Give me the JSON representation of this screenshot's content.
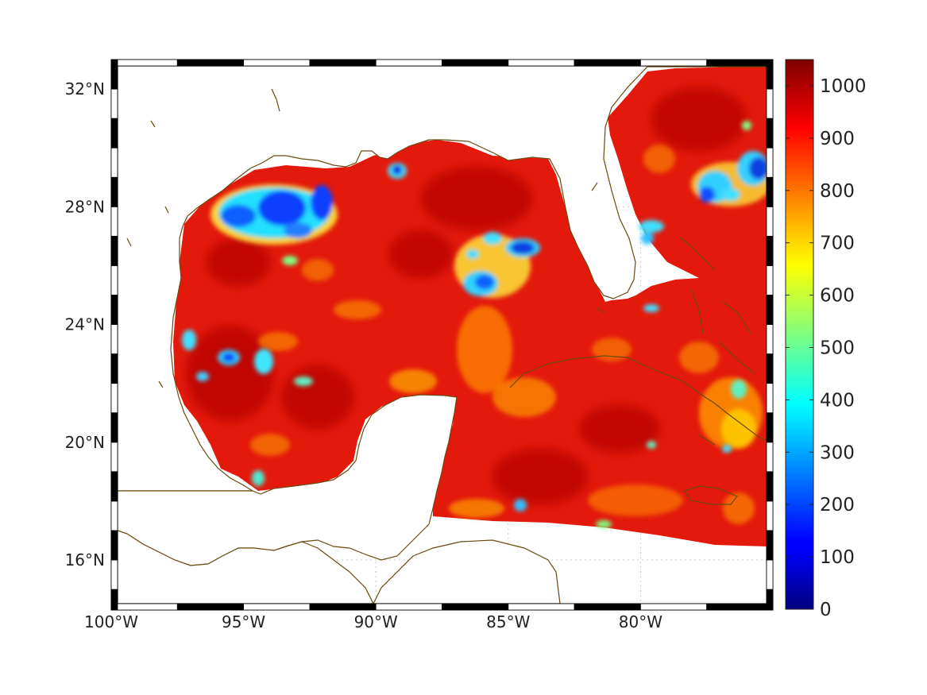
{
  "map": {
    "lat_labels": [
      "32°N",
      "28°N",
      "24°N",
      "20°N",
      "16°N"
    ],
    "lat_values": [
      32,
      28,
      24,
      20,
      16
    ],
    "lon_labels": [
      "100°W",
      "95°W",
      "90°W",
      "85°W",
      "80°W"
    ],
    "lon_values": [
      -100,
      -95,
      -90,
      -85,
      -80
    ],
    "lon_range": [
      -100,
      -75
    ],
    "lat_range": [
      14.3,
      33
    ],
    "grid": true,
    "frame": "black-and-white checkered",
    "coastline_color": "#6b4a10",
    "land_color": "#ffffff"
  },
  "colorbar": {
    "colormap": "jet",
    "range": [
      0,
      1050
    ],
    "tick_labels": [
      "0",
      "100",
      "200",
      "300",
      "400",
      "500",
      "600",
      "700",
      "800",
      "900",
      "1000"
    ],
    "tick_values": [
      0,
      100,
      200,
      300,
      400,
      500,
      600,
      700,
      800,
      900,
      1000
    ],
    "placement": "right"
  },
  "field": {
    "dominant_color": "#e8200c",
    "high_spots_color": "#b80000",
    "medium_color": "#ff7a00",
    "low_color": "#1fa0ff"
  }
}
